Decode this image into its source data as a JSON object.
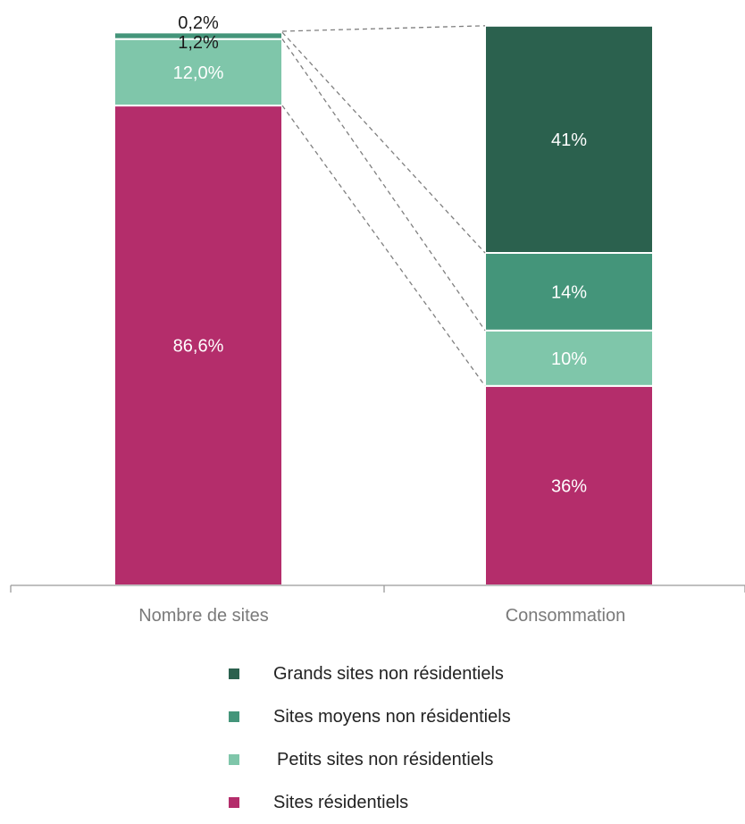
{
  "chart_data": {
    "type": "bar",
    "stacked": true,
    "normalized_to_percent": true,
    "categories": [
      "Nombre de sites",
      "Consommation"
    ],
    "series": [
      {
        "name": "Sites résidentiels",
        "color": "#b42d6b",
        "values": [
          86.6,
          36
        ],
        "labels": [
          "86,6%",
          "36%"
        ]
      },
      {
        "name": "Petits sites non résidentiels",
        "color": "#7fc6aa",
        "values": [
          12.0,
          10
        ],
        "labels": [
          "12,0%",
          "10%"
        ]
      },
      {
        "name": "Sites moyens non résidentiels",
        "color": "#44957a",
        "values": [
          1.2,
          14
        ],
        "labels": [
          "1,2%",
          "14%"
        ]
      },
      {
        "name": "Grands sites non résidentiels",
        "color": "#2b614e",
        "values": [
          0.2,
          41
        ],
        "labels": [
          "0,2%",
          "41%"
        ]
      }
    ],
    "ylim": [
      0,
      100
    ],
    "legend_position": "bottom",
    "legend_order": [
      "Grands sites non résidentiels",
      "Sites moyens non résidentiels",
      "Petits sites non résidentiels",
      "Sites résidentiels"
    ],
    "connector_lines": "dashed",
    "grid": false
  }
}
